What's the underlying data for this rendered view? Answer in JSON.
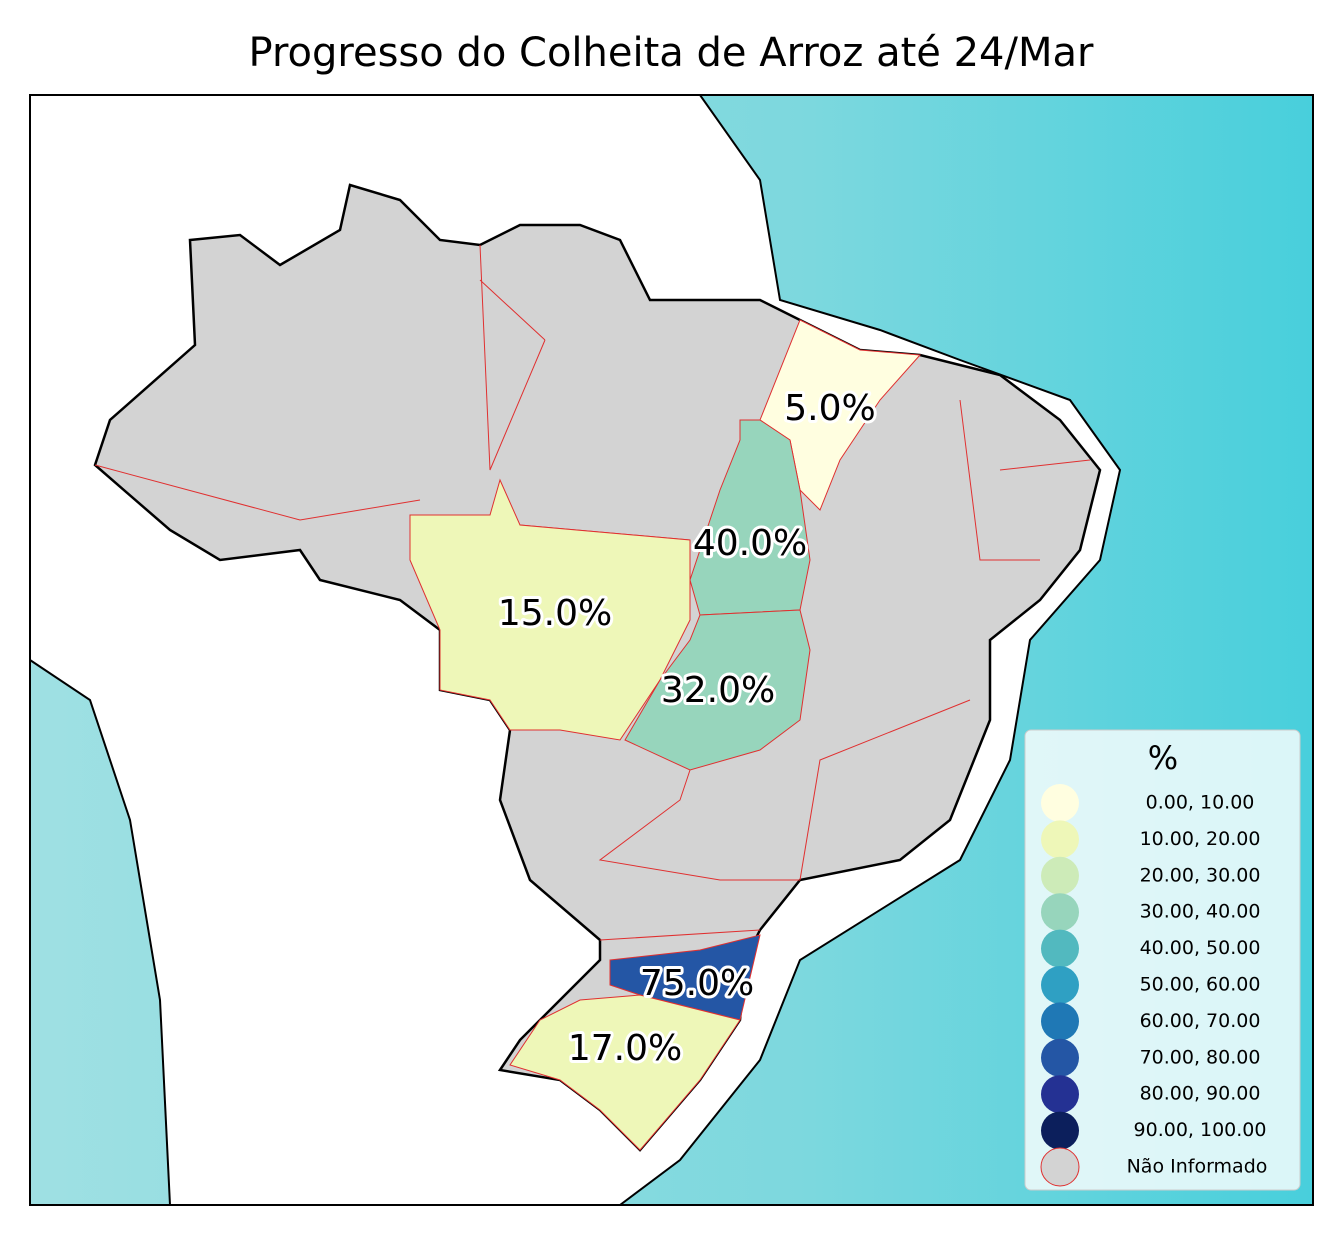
{
  "title": "Progresso do Colheita de Arroz até 24/Mar",
  "regions": [
    {
      "label": "5.0%",
      "color": "#fffee0"
    },
    {
      "label": "40.0%",
      "color": "#97d5bc"
    },
    {
      "label": "15.0%",
      "color": "#eef7b8"
    },
    {
      "label": "32.0%",
      "color": "#97d5bc"
    },
    {
      "label": "75.0%",
      "color": "#2456a5"
    },
    {
      "label": "17.0%",
      "color": "#eef7b8"
    }
  ],
  "legend": {
    "title": "%",
    "items": [
      {
        "label": "0.00,  10.00",
        "color": "#fffee0"
      },
      {
        "label": "10.00,  20.00",
        "color": "#eef7b8"
      },
      {
        "label": "20.00,  30.00",
        "color": "#cdebb8"
      },
      {
        "label": "30.00,  40.00",
        "color": "#97d5bc"
      },
      {
        "label": "40.00,  50.00",
        "color": "#52b9bf"
      },
      {
        "label": "50.00,  60.00",
        "color": "#2fa0c3"
      },
      {
        "label": "60.00,  70.00",
        "color": "#1f78b5"
      },
      {
        "label": "70.00,  80.00",
        "color": "#2456a5"
      },
      {
        "label": "80.00,  90.00",
        "color": "#243193"
      },
      {
        "label": "90.00, 100.00",
        "color": "#0c1f5c"
      },
      {
        "label": "Não Informado",
        "color": "#d3d3d3"
      }
    ]
  }
}
